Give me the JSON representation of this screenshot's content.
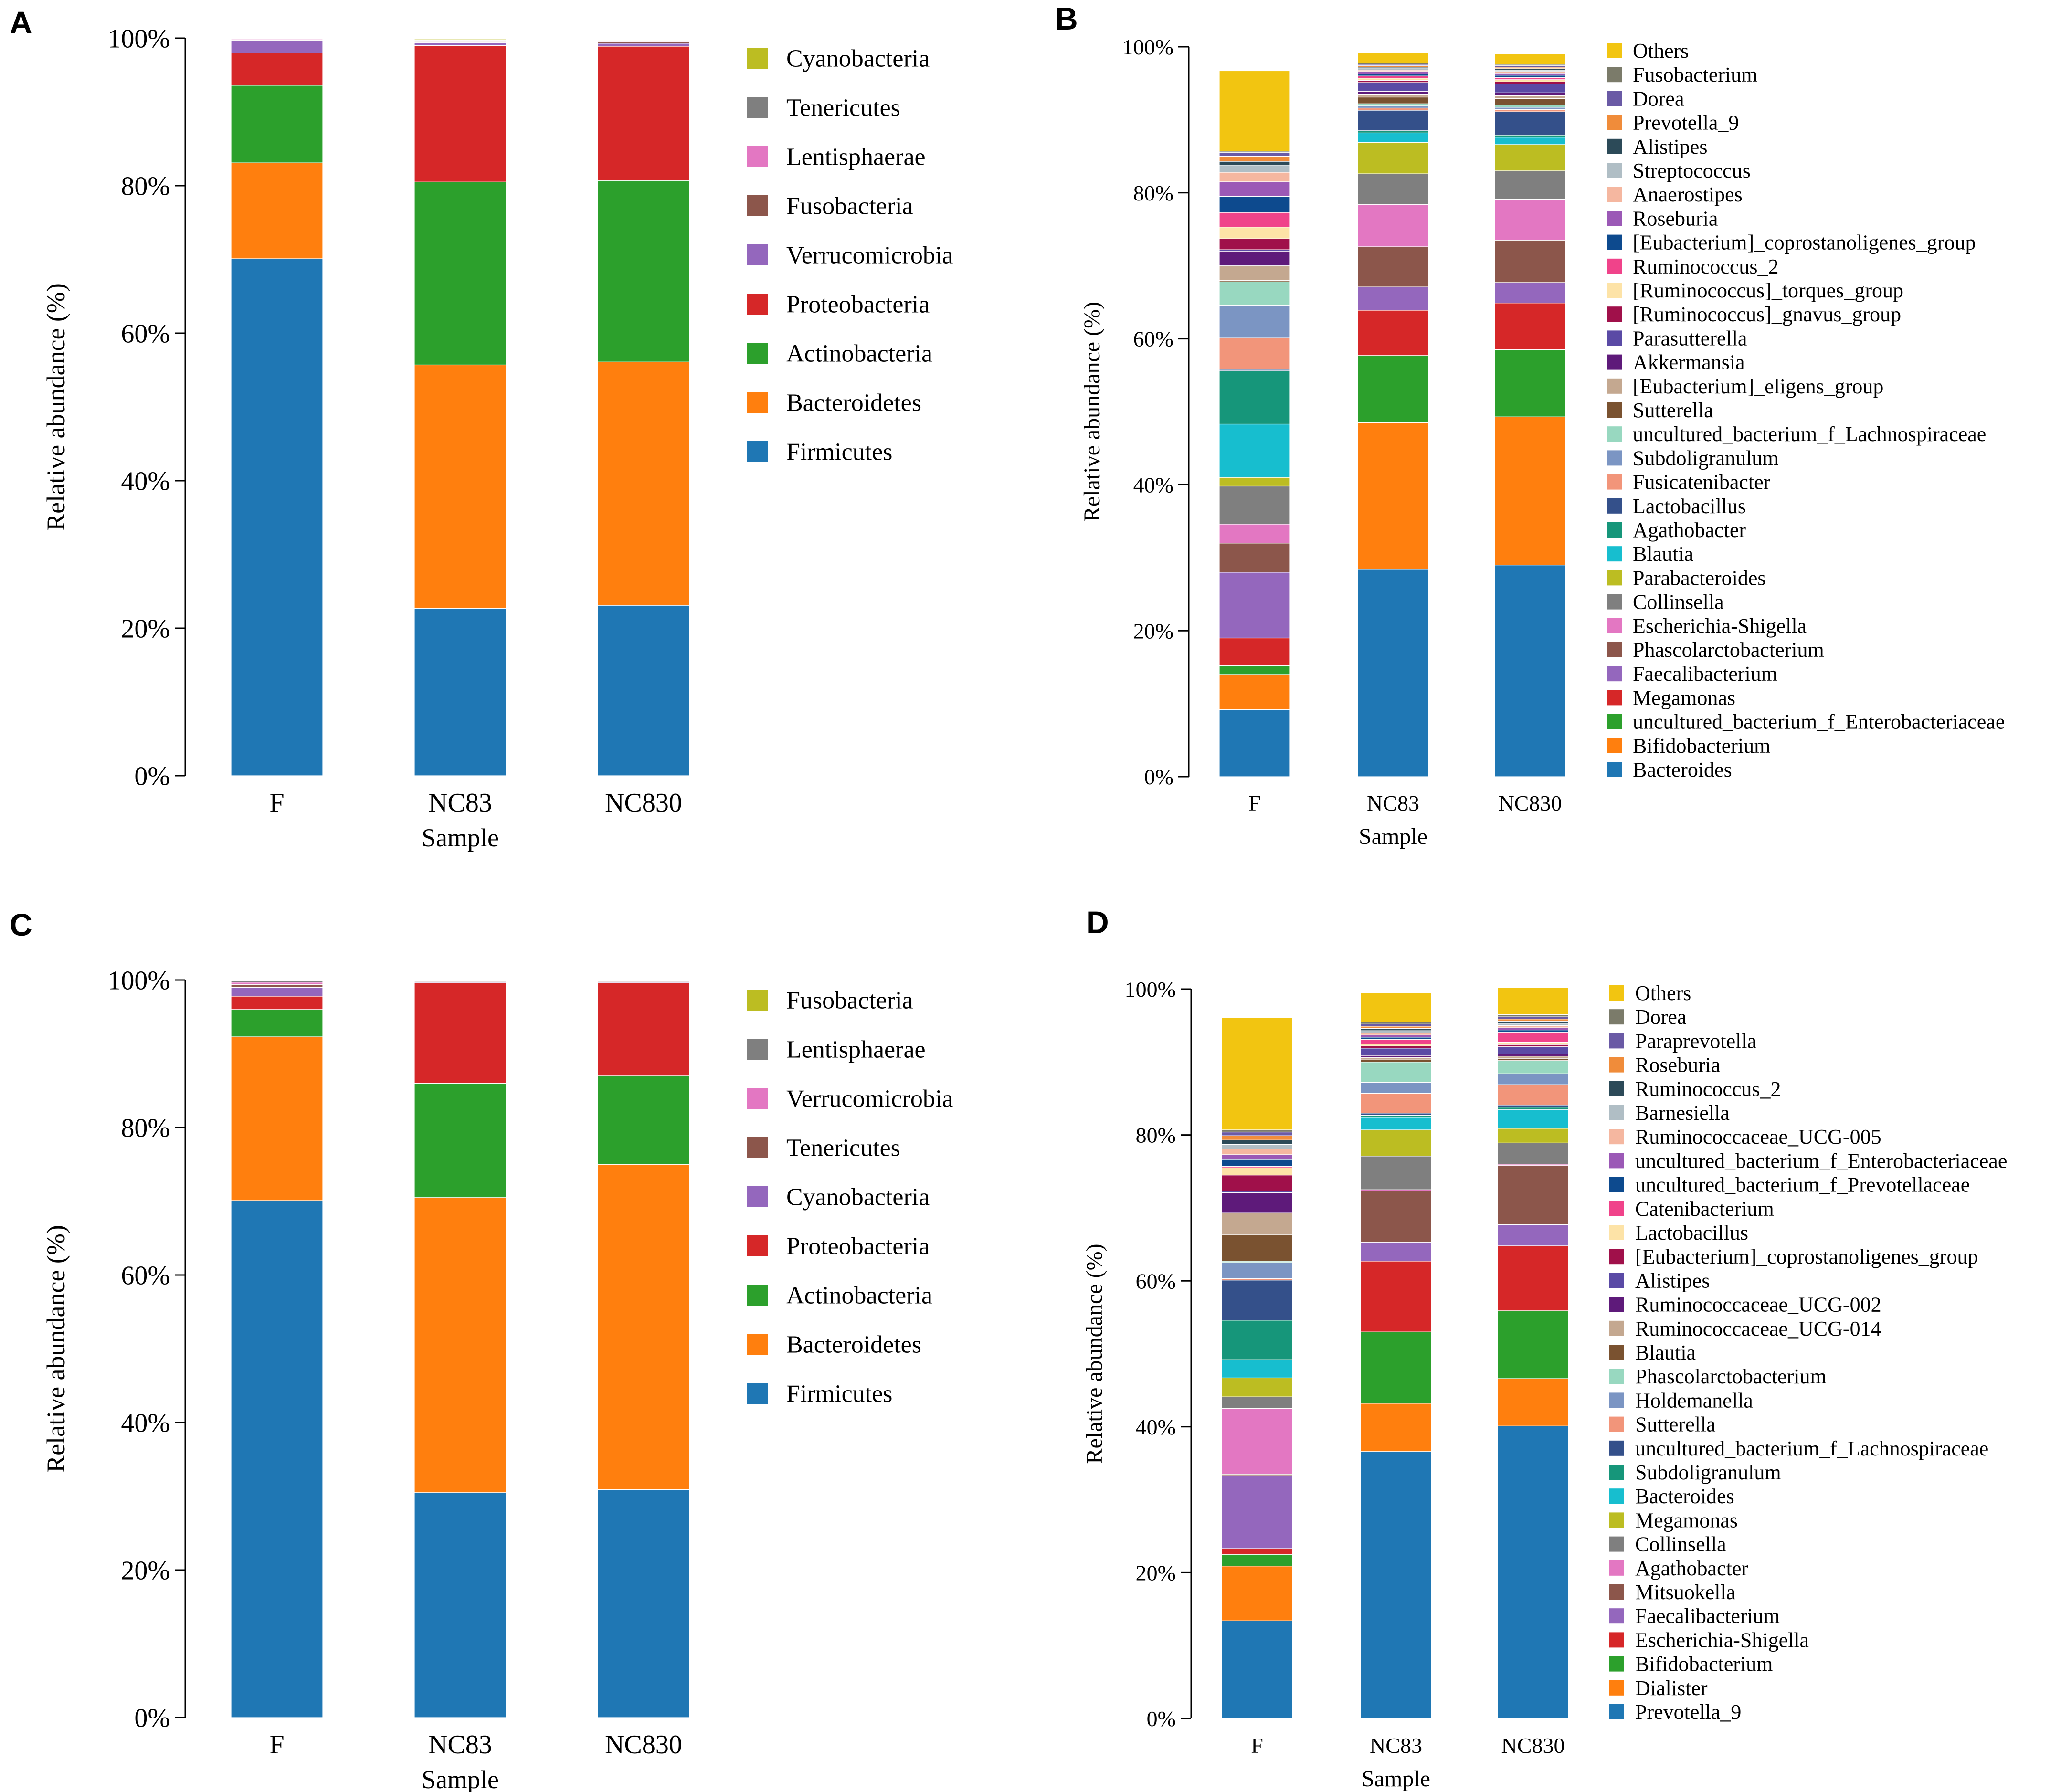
{
  "figure": {
    "panels": [
      {
        "letter": "A",
        "ylabel": "Relative abundance (%)",
        "xlabel": "Sample"
      },
      {
        "letter": "B",
        "ylabel": "Relative abundance (%)",
        "xlabel": "Sample"
      },
      {
        "letter": "C",
        "ylabel": "Relative abundance (%)",
        "xlabel": "Sample"
      },
      {
        "letter": "D",
        "ylabel": "Relative abundance (%)",
        "xlabel": "Sample"
      }
    ]
  },
  "chart_data": [
    {
      "type": "bar",
      "stacked": true,
      "title": "",
      "xlabel": "Sample",
      "ylabel": "Relative abundance (%)",
      "ylim": [
        0,
        100
      ],
      "yticks": [
        "0%",
        "20%",
        "40%",
        "60%",
        "80%",
        "100%"
      ],
      "categories": [
        "F",
        "NC83",
        "NC830"
      ],
      "series": [
        {
          "name": "Firmicutes",
          "color": "#1f77b4",
          "values": [
            70.1,
            22.7,
            23.1
          ]
        },
        {
          "name": "Bacteroidetes",
          "color": "#ff7f0e",
          "values": [
            13.0,
            33.0,
            33.0
          ]
        },
        {
          "name": "Actinobacteria",
          "color": "#2ca02c",
          "values": [
            10.5,
            24.8,
            24.6
          ]
        },
        {
          "name": "Proteobacteria",
          "color": "#d62728",
          "values": [
            4.4,
            18.5,
            18.2
          ]
        },
        {
          "name": "Verrucomicrobia",
          "color": "#9467bd",
          "values": [
            1.7,
            0.4,
            0.4
          ]
        },
        {
          "name": "Fusobacteria",
          "color": "#8c564b",
          "values": [
            0.1,
            0.2,
            0.2
          ]
        },
        {
          "name": "Lentisphaerae",
          "color": "#e377c2",
          "values": [
            0.1,
            0.1,
            0.1
          ]
        },
        {
          "name": "Tenericutes",
          "color": "#7f7f7f",
          "values": [
            0.05,
            0.1,
            0.1
          ]
        },
        {
          "name": "Cyanobacteria",
          "color": "#bcbd22",
          "values": [
            0.05,
            0.1,
            0.1
          ]
        }
      ]
    },
    {
      "type": "bar",
      "stacked": true,
      "title": "",
      "xlabel": "Sample",
      "ylabel": "Relative abundance (%)",
      "ylim": [
        0,
        100
      ],
      "yticks": [
        "0%",
        "20%",
        "40%",
        "60%",
        "80%",
        "100%"
      ],
      "categories": [
        "F",
        "NC83",
        "NC830"
      ],
      "series": [
        {
          "name": "Bacteroides",
          "color": "#1f77b4",
          "values": [
            9.2,
            28.4,
            29.0
          ]
        },
        {
          "name": "Bifidobacterium",
          "color": "#ff7f0e",
          "values": [
            4.8,
            20.1,
            20.3
          ]
        },
        {
          "name": "uncultured_bacterium_f_Enterobacteriaceae",
          "color": "#2ca02c",
          "values": [
            1.2,
            9.2,
            9.2
          ]
        },
        {
          "name": "Megamonas",
          "color": "#d62728",
          "values": [
            3.8,
            6.2,
            6.4
          ]
        },
        {
          "name": "Faecalibacterium",
          "color": "#9467bd",
          "values": [
            9.0,
            3.2,
            2.8
          ]
        },
        {
          "name": "Phascolarctobacterium",
          "color": "#8c564b",
          "values": [
            4.0,
            5.5,
            5.8
          ]
        },
        {
          "name": "Escherichia-Shigella",
          "color": "#e377c2",
          "values": [
            2.6,
            5.8,
            5.6
          ]
        },
        {
          "name": "Collinsella",
          "color": "#7f7f7f",
          "values": [
            5.2,
            4.2,
            3.9
          ]
        },
        {
          "name": "Parabacteroides",
          "color": "#bcbd22",
          "values": [
            1.2,
            4.3,
            3.6
          ]
        },
        {
          "name": "Blautia",
          "color": "#17becf",
          "values": [
            7.3,
            1.3,
            1.0
          ]
        },
        {
          "name": "Agathobacter",
          "color": "#16967a",
          "values": [
            7.3,
            0.3,
            0.3
          ]
        },
        {
          "name": "Lactobacillus",
          "color": "#34508a",
          "values": [
            0.2,
            2.8,
            3.2
          ]
        },
        {
          "name": "Fusicatenibacter",
          "color": "#f2957a",
          "values": [
            4.3,
            0.3,
            0.3
          ]
        },
        {
          "name": "Subdoligranulum",
          "color": "#7b95c3",
          "values": [
            4.5,
            0.3,
            0.3
          ]
        },
        {
          "name": "uncultured_bacterium_f_Lachnospiraceae",
          "color": "#98d8c0",
          "values": [
            3.2,
            0.3,
            0.3
          ]
        },
        {
          "name": "Sutterella",
          "color": "#7a5230",
          "values": [
            0.2,
            0.9,
            0.9
          ]
        },
        {
          "name": "[Eubacterium]_eligens_group",
          "color": "#c4a890",
          "values": [
            2.0,
            0.4,
            0.4
          ]
        },
        {
          "name": "Akkermansia",
          "color": "#5e1a7a",
          "values": [
            2.0,
            0.4,
            0.4
          ]
        },
        {
          "name": "Parasutterella",
          "color": "#5a4aa5",
          "values": [
            0.2,
            1.2,
            1.2
          ]
        },
        {
          "name": "[Ruminococcus]_gnavus_group",
          "color": "#a0104a",
          "values": [
            1.5,
            0.3,
            0.3
          ]
        },
        {
          "name": "[Ruminococcus]_torques_group",
          "color": "#fde3a7",
          "values": [
            1.6,
            0.3,
            0.3
          ]
        },
        {
          "name": "Ruminococcus_2",
          "color": "#f0438a",
          "values": [
            2.0,
            0.3,
            0.3
          ]
        },
        {
          "name": "[Eubacterium]_coprostanoligenes_group",
          "color": "#0d4a8e",
          "values": [
            2.2,
            0.3,
            0.3
          ]
        },
        {
          "name": "Roseburia",
          "color": "#9b59b6",
          "values": [
            2.0,
            0.3,
            0.3
          ]
        },
        {
          "name": "Anaerostipes",
          "color": "#f5b7a0",
          "values": [
            1.3,
            0.2,
            0.2
          ]
        },
        {
          "name": "Streptococcus",
          "color": "#b0bec5",
          "values": [
            1.0,
            0.2,
            0.2
          ]
        },
        {
          "name": "Alistipes",
          "color": "#2c4a58",
          "values": [
            0.5,
            0.2,
            0.2
          ]
        },
        {
          "name": "Prevotella_9",
          "color": "#f08c3a",
          "values": [
            0.7,
            0.2,
            0.2
          ]
        },
        {
          "name": "Dorea",
          "color": "#6a5aa5",
          "values": [
            0.5,
            0.2,
            0.2
          ]
        },
        {
          "name": "Fusobacterium",
          "color": "#7b7b6a",
          "values": [
            0.2,
            0.2,
            0.2
          ]
        },
        {
          "name": "Others",
          "color": "#f2c511",
          "values": [
            11.0,
            1.4,
            1.4
          ]
        }
      ]
    },
    {
      "type": "bar",
      "stacked": true,
      "title": "",
      "xlabel": "Sample",
      "ylabel": "Relative abundance (%)",
      "ylim": [
        0,
        100
      ],
      "yticks": [
        "0%",
        "20%",
        "40%",
        "60%",
        "80%",
        "100%"
      ],
      "categories": [
        "F",
        "NC83",
        "NC830"
      ],
      "series": [
        {
          "name": "Firmicutes",
          "color": "#1f77b4",
          "values": [
            70.1,
            30.5,
            30.9
          ]
        },
        {
          "name": "Bacteroidetes",
          "color": "#ff7f0e",
          "values": [
            22.2,
            40.0,
            44.1
          ]
        },
        {
          "name": "Actinobacteria",
          "color": "#2ca02c",
          "values": [
            3.7,
            15.5,
            12.0
          ]
        },
        {
          "name": "Proteobacteria",
          "color": "#d62728",
          "values": [
            1.8,
            13.6,
            12.6
          ]
        },
        {
          "name": "Cyanobacteria",
          "color": "#9467bd",
          "values": [
            1.2,
            0.1,
            0.1
          ]
        },
        {
          "name": "Tenericutes",
          "color": "#8c564b",
          "values": [
            0.4,
            0.1,
            0.1
          ]
        },
        {
          "name": "Verrucomicrobia",
          "color": "#e377c2",
          "values": [
            0.3,
            0.1,
            0.1
          ]
        },
        {
          "name": "Lentisphaerae",
          "color": "#7f7f7f",
          "values": [
            0.2,
            0.05,
            0.05
          ]
        },
        {
          "name": "Fusobacteria",
          "color": "#bcbd22",
          "values": [
            0.1,
            0.05,
            0.05
          ]
        }
      ]
    },
    {
      "type": "bar",
      "stacked": true,
      "title": "",
      "xlabel": "Sample",
      "ylabel": "Relative abundance (%)",
      "ylim": [
        0,
        100
      ],
      "yticks": [
        "0%",
        "20%",
        "40%",
        "60%",
        "80%",
        "100%"
      ],
      "categories": [
        "F",
        "NC83",
        "NC830"
      ],
      "series": [
        {
          "name": "Prevotella_9",
          "color": "#1f77b4",
          "values": [
            13.4,
            36.6,
            40.1
          ]
        },
        {
          "name": "Dialister",
          "color": "#ff7f0e",
          "values": [
            7.5,
            6.6,
            6.5
          ]
        },
        {
          "name": "Bifidobacterium",
          "color": "#2ca02c",
          "values": [
            1.6,
            9.8,
            9.3
          ]
        },
        {
          "name": "Escherichia-Shigella",
          "color": "#d62728",
          "values": [
            0.8,
            9.7,
            8.9
          ]
        },
        {
          "name": "Faecalibacterium",
          "color": "#9467bd",
          "values": [
            10.0,
            2.6,
            2.9
          ]
        },
        {
          "name": "Mitsuokella",
          "color": "#8c564b",
          "values": [
            0.2,
            7.0,
            8.1
          ]
        },
        {
          "name": "Agathobacter",
          "color": "#e377c2",
          "values": [
            9.0,
            0.2,
            0.2
          ]
        },
        {
          "name": "Collinsella",
          "color": "#7f7f7f",
          "values": [
            1.6,
            4.6,
            2.9
          ]
        },
        {
          "name": "Megamonas",
          "color": "#bcbd22",
          "values": [
            2.6,
            3.6,
            2.0
          ]
        },
        {
          "name": "Bacteroides",
          "color": "#17becf",
          "values": [
            2.5,
            1.7,
            2.6
          ]
        },
        {
          "name": "Subdoligranulum",
          "color": "#16967a",
          "values": [
            5.4,
            0.3,
            0.3
          ]
        },
        {
          "name": "uncultured_bacterium_f_Lachnospiraceae",
          "color": "#34508a",
          "values": [
            5.5,
            0.3,
            0.3
          ]
        },
        {
          "name": "Sutterella",
          "color": "#f2957a",
          "values": [
            0.2,
            2.7,
            2.8
          ]
        },
        {
          "name": "Holdemanella",
          "color": "#7b95c3",
          "values": [
            2.2,
            1.5,
            1.5
          ]
        },
        {
          "name": "Phascolarctobacterium",
          "color": "#98d8c0",
          "values": [
            0.2,
            2.8,
            1.8
          ]
        },
        {
          "name": "Blautia",
          "color": "#7a5230",
          "values": [
            3.6,
            0.3,
            0.3
          ]
        },
        {
          "name": "Ruminococcaceae_UCG-014",
          "color": "#c4a890",
          "values": [
            3.0,
            0.3,
            0.3
          ]
        },
        {
          "name": "Ruminococcaceae_UCG-002",
          "color": "#5e1a7a",
          "values": [
            2.8,
            0.3,
            0.3
          ]
        },
        {
          "name": "Alistipes",
          "color": "#5a4aa5",
          "values": [
            0.2,
            1.0,
            1.0
          ]
        },
        {
          "name": "[Eubacterium]_coprostanoligenes_group",
          "color": "#a0104a",
          "values": [
            2.2,
            0.3,
            0.3
          ]
        },
        {
          "name": "Lactobacillus",
          "color": "#fde3a7",
          "values": [
            1.0,
            0.3,
            0.3
          ]
        },
        {
          "name": "Catenibacterium",
          "color": "#f0438a",
          "values": [
            0.2,
            0.6,
            1.4
          ]
        },
        {
          "name": "uncultured_bacterium_f_Prevotellaceae",
          "color": "#0d4a8e",
          "values": [
            1.0,
            0.3,
            0.3
          ]
        },
        {
          "name": "uncultured_bacterium_f_Enterobacteriaceae",
          "color": "#9b59b6",
          "values": [
            0.6,
            0.3,
            0.3
          ]
        },
        {
          "name": "Ruminococcaceae_UCG-005",
          "color": "#f5b7a0",
          "values": [
            0.8,
            0.3,
            0.3
          ]
        },
        {
          "name": "Barnesiella",
          "color": "#b0bec5",
          "values": [
            0.6,
            0.3,
            0.3
          ]
        },
        {
          "name": "Ruminococcus_2",
          "color": "#2c4a58",
          "values": [
            0.6,
            0.3,
            0.3
          ]
        },
        {
          "name": "Roseburia",
          "color": "#f08c3a",
          "values": [
            0.6,
            0.3,
            0.3
          ]
        },
        {
          "name": "Paraprevotella",
          "color": "#6a5aa5",
          "values": [
            0.5,
            0.3,
            0.3
          ]
        },
        {
          "name": "Dorea",
          "color": "#7b7b6a",
          "values": [
            0.3,
            0.3,
            0.3
          ]
        },
        {
          "name": "Others",
          "color": "#f2c511",
          "values": [
            15.4,
            4.0,
            3.7
          ]
        }
      ]
    }
  ]
}
